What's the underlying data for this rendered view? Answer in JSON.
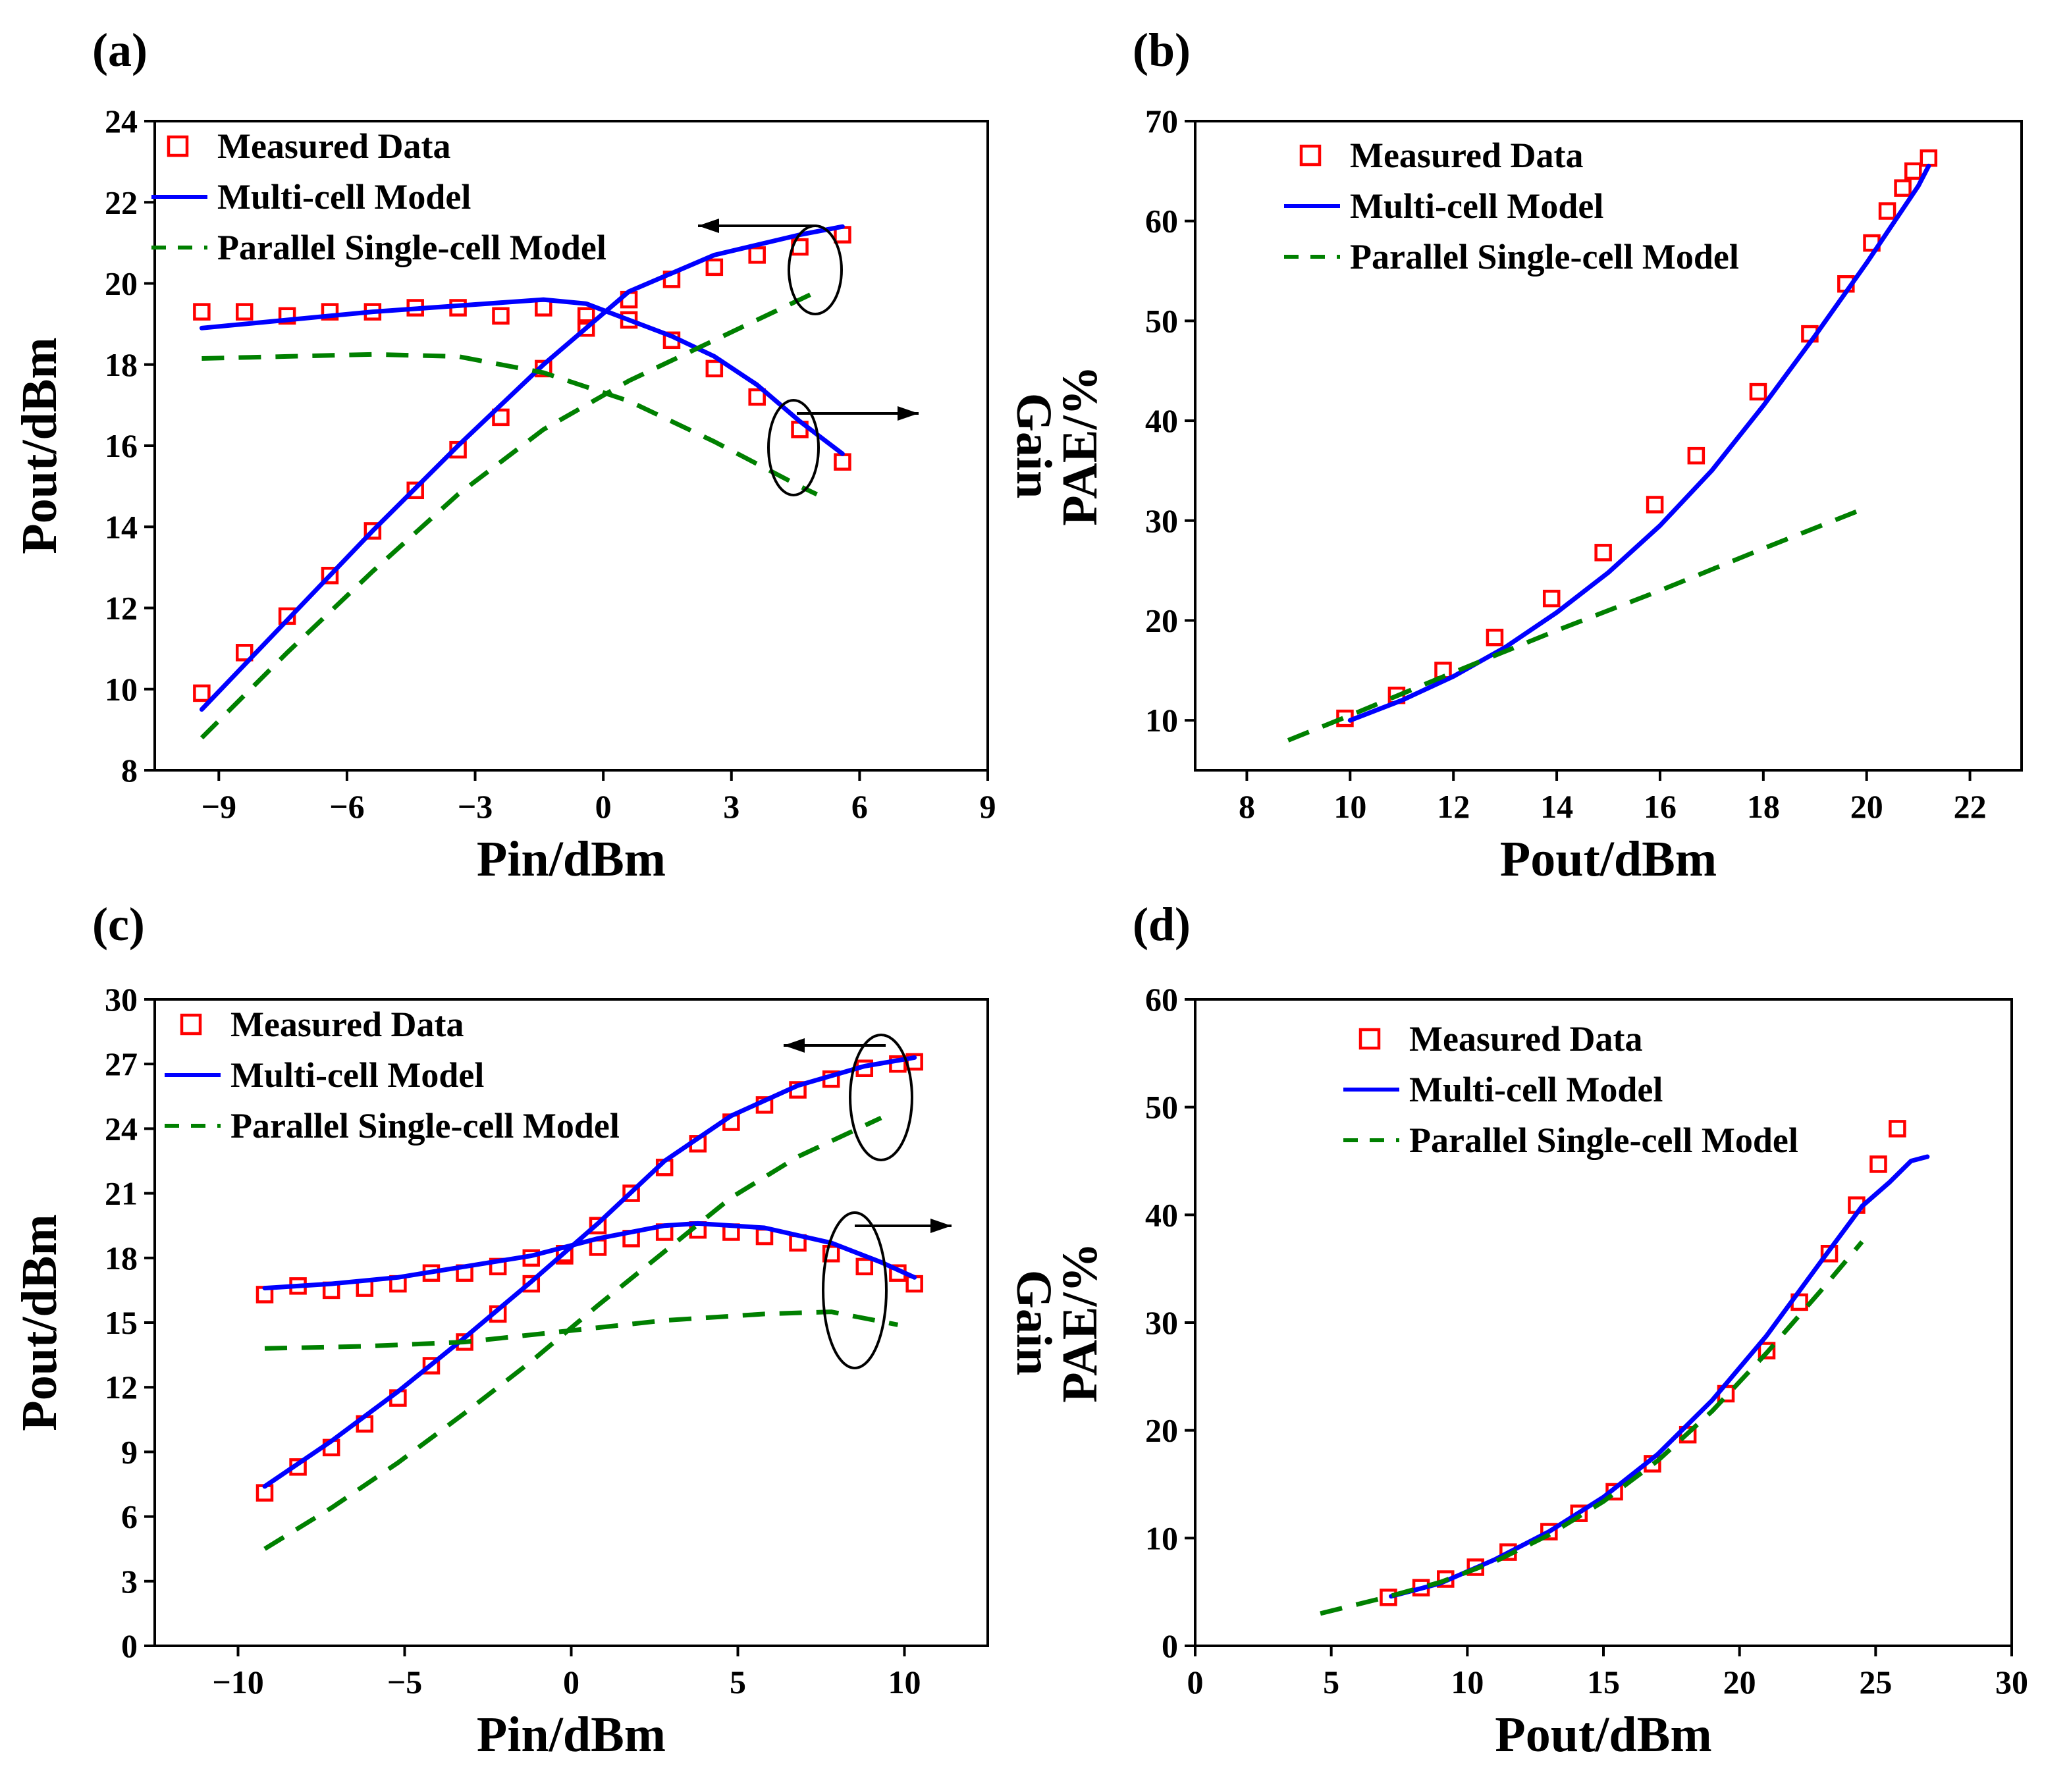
{
  "figure": {
    "panel_letters": [
      "(a)",
      "(b)",
      "(c)",
      "(d)"
    ]
  },
  "legend": {
    "measured": "Measured Data",
    "multi": "Multi-cell Model",
    "parallel": "Parallel Single-cell Model"
  },
  "colors": {
    "measured": "#ff0000",
    "multi": "#0000ff",
    "parallel": "#008000",
    "axis": "#000000"
  },
  "chart_data": [
    {
      "panel": "(a)",
      "type": "line",
      "xlabel": "Pin/dBm",
      "ylabel": "Pout/dBm",
      "ylabel_right": "Gain",
      "xlim": [
        -10.5,
        9
      ],
      "ylim": [
        8,
        24
      ],
      "xticks": [
        -9,
        -6,
        -3,
        0,
        3,
        6,
        9
      ],
      "xtick_labels": [
        "−9",
        "−6",
        "−3",
        "0",
        "3",
        "6",
        "9"
      ],
      "yticks": [
        8,
        10,
        12,
        14,
        16,
        18,
        20,
        22,
        24
      ],
      "ytick_labels": [
        "8",
        "10",
        "12",
        "14",
        "16",
        "18",
        "20",
        "22",
        "24"
      ],
      "series": [
        {
          "name": "Measured Data (Pout)",
          "kind": "markers",
          "color": "measured",
          "x": [
            -9.4,
            -8.4,
            -7.4,
            -6.4,
            -5.4,
            -4.4,
            -3.4,
            -2.4,
            -1.4,
            -0.4,
            0.6,
            1.6,
            2.6,
            3.6,
            4.6,
            5.6
          ],
          "y": [
            9.9,
            10.9,
            11.8,
            12.8,
            13.9,
            14.9,
            15.9,
            16.7,
            17.9,
            18.9,
            19.6,
            20.1,
            20.4,
            20.7,
            20.9,
            21.2
          ]
        },
        {
          "name": "Measured Data (Gain)",
          "kind": "markers",
          "color": "measured",
          "x": [
            -9.4,
            -8.4,
            -7.4,
            -6.4,
            -5.4,
            -4.4,
            -3.4,
            -2.4,
            -1.4,
            -0.4,
            0.6,
            1.6,
            2.6,
            3.6,
            4.6,
            5.6
          ],
          "y": [
            19.3,
            19.3,
            19.2,
            19.3,
            19.3,
            19.4,
            19.4,
            19.2,
            19.4,
            19.2,
            19.1,
            18.6,
            17.9,
            17.2,
            16.4,
            15.6
          ]
        },
        {
          "name": "Multi-cell Model (Pout)",
          "kind": "solid",
          "color": "multi",
          "x": [
            -9.4,
            -7.4,
            -5.4,
            -3.4,
            -1.4,
            0.6,
            2.6,
            4.6,
            5.6
          ],
          "y": [
            9.5,
            11.7,
            13.9,
            16.0,
            18.0,
            19.8,
            20.7,
            21.2,
            21.4
          ]
        },
        {
          "name": "Multi-cell Model (Gain)",
          "kind": "solid",
          "color": "multi",
          "x": [
            -9.4,
            -7.4,
            -5.4,
            -3.4,
            -1.4,
            -0.4,
            0.6,
            1.6,
            2.6,
            3.6,
            4.6,
            5.6
          ],
          "y": [
            18.9,
            19.1,
            19.3,
            19.45,
            19.6,
            19.5,
            19.1,
            18.7,
            18.2,
            17.5,
            16.6,
            15.8
          ]
        },
        {
          "name": "Parallel Single-cell Model (Pout)",
          "kind": "dashed",
          "color": "parallel",
          "x": [
            -9.4,
            -7.4,
            -5.4,
            -3.4,
            -1.4,
            0.6,
            2.6,
            4.6,
            5.0
          ],
          "y": [
            8.8,
            10.9,
            12.9,
            14.8,
            16.4,
            17.6,
            18.6,
            19.6,
            19.8
          ]
        },
        {
          "name": "Parallel Single-cell Model (Gain)",
          "kind": "dashed",
          "color": "parallel",
          "x": [
            -9.4,
            -7.4,
            -5.4,
            -3.4,
            -1.4,
            0.6,
            2.6,
            4.6,
            5.0
          ],
          "y": [
            18.15,
            18.2,
            18.25,
            18.2,
            17.8,
            17.1,
            16.1,
            15.0,
            14.8
          ]
        }
      ],
      "annotations": "ellipses with arrows: upper ellipse arrow points left (Pout axis), lower ellipse arrow points right (Gain axis)"
    },
    {
      "panel": "(b)",
      "type": "line",
      "xlabel": "Pout/dBm",
      "ylabel": "PAE/%",
      "xlim": [
        7,
        23
      ],
      "ylim": [
        5,
        70
      ],
      "xticks": [
        8,
        10,
        12,
        14,
        16,
        18,
        20,
        22
      ],
      "xtick_labels": [
        "8",
        "10",
        "12",
        "14",
        "16",
        "18",
        "20",
        "22"
      ],
      "yticks": [
        10,
        20,
        30,
        40,
        50,
        60,
        70
      ],
      "ytick_labels": [
        "10",
        "20",
        "30",
        "40",
        "50",
        "60",
        "70"
      ],
      "series": [
        {
          "name": "Measured Data",
          "kind": "markers",
          "color": "measured",
          "x": [
            9.9,
            10.9,
            11.8,
            12.8,
            13.9,
            14.9,
            15.9,
            16.7,
            17.9,
            18.9,
            19.6,
            20.1,
            20.4,
            20.7,
            20.9,
            21.2
          ],
          "y": [
            10.2,
            12.5,
            15.0,
            18.3,
            22.2,
            26.8,
            31.6,
            36.5,
            42.9,
            48.7,
            53.7,
            57.8,
            61.0,
            63.3,
            65.0,
            66.3
          ]
        },
        {
          "name": "Multi-cell Model",
          "kind": "solid",
          "color": "multi",
          "x": [
            10,
            11,
            12,
            13,
            14,
            15,
            16,
            17,
            18,
            19,
            20,
            21,
            21.2
          ],
          "y": [
            10.0,
            12.0,
            14.4,
            17.3,
            20.8,
            24.8,
            29.5,
            35.0,
            41.5,
            48.5,
            55.8,
            63.5,
            65.5
          ]
        },
        {
          "name": "Parallel Single-cell Model",
          "kind": "dashed",
          "color": "parallel",
          "x": [
            8.8,
            10,
            12,
            14,
            16,
            18,
            20
          ],
          "y": [
            8.0,
            10.5,
            14.8,
            19.0,
            23.0,
            27.2,
            31.3
          ]
        }
      ]
    },
    {
      "panel": "(c)",
      "type": "line",
      "xlabel": "Pin/dBm",
      "ylabel": "Pout/dBm",
      "ylabel_right": "Gain",
      "xlim": [
        -12.5,
        12.5
      ],
      "ylim": [
        0,
        30
      ],
      "xticks": [
        -10,
        -5,
        0,
        5,
        10
      ],
      "xtick_labels": [
        "−10",
        "−5",
        "0",
        "5",
        "10"
      ],
      "yticks": [
        0,
        3,
        6,
        9,
        12,
        15,
        18,
        21,
        24,
        27,
        30
      ],
      "ytick_labels": [
        "0",
        "3",
        "6",
        "9",
        "12",
        "15",
        "18",
        "21",
        "24",
        "27",
        "30"
      ],
      "series": [
        {
          "name": "Measured Data (Pout)",
          "kind": "markers",
          "color": "measured",
          "x": [
            -9.2,
            -8.2,
            -7.2,
            -6.2,
            -5.2,
            -4.2,
            -3.2,
            -2.2,
            -1.2,
            -0.2,
            0.8,
            1.8,
            2.8,
            3.8,
            4.8,
            5.8,
            6.8,
            7.8,
            8.8,
            9.8,
            10.3
          ],
          "y": [
            7.1,
            8.3,
            9.2,
            10.3,
            11.5,
            13.0,
            14.1,
            15.4,
            16.8,
            18.1,
            19.5,
            21.0,
            22.2,
            23.3,
            24.3,
            25.1,
            25.8,
            26.3,
            26.8,
            27.0,
            27.1
          ]
        },
        {
          "name": "Measured Data (Gain)",
          "kind": "markers",
          "color": "measured",
          "x": [
            -9.2,
            -8.2,
            -7.2,
            -6.2,
            -5.2,
            -4.2,
            -3.2,
            -2.2,
            -1.2,
            -0.2,
            0.8,
            1.8,
            2.8,
            3.8,
            4.8,
            5.8,
            6.8,
            7.8,
            8.8,
            9.8,
            10.3
          ],
          "y": [
            16.3,
            16.7,
            16.5,
            16.6,
            16.8,
            17.3,
            17.3,
            17.6,
            18.0,
            18.2,
            18.5,
            18.9,
            19.2,
            19.3,
            19.2,
            19.0,
            18.7,
            18.2,
            17.6,
            17.3,
            16.8
          ]
        },
        {
          "name": "Multi-cell Model (Pout)",
          "kind": "solid",
          "color": "multi",
          "x": [
            -9.2,
            -7.2,
            -5.2,
            -3.2,
            -1.2,
            0.8,
            2.8,
            4.8,
            6.8,
            8.8,
            10.3
          ],
          "y": [
            7.4,
            9.5,
            11.8,
            14.3,
            16.9,
            19.6,
            22.5,
            24.6,
            26.0,
            26.9,
            27.3
          ]
        },
        {
          "name": "Multi-cell Model (Gain)",
          "kind": "solid",
          "color": "multi",
          "x": [
            -9.2,
            -7.2,
            -5.2,
            -3.2,
            -1.2,
            0.8,
            2.8,
            3.8,
            5.8,
            7.8,
            9.3,
            10.3
          ],
          "y": [
            16.6,
            16.8,
            17.1,
            17.6,
            18.1,
            18.9,
            19.5,
            19.6,
            19.4,
            18.7,
            17.8,
            17.1
          ]
        },
        {
          "name": "Parallel Single-cell Model (Pout)",
          "kind": "dashed",
          "color": "parallel",
          "x": [
            -9.2,
            -7.2,
            -5.2,
            -3.2,
            -1.2,
            0.8,
            2.8,
            4.8,
            6.8,
            9.3
          ],
          "y": [
            4.5,
            6.4,
            8.5,
            10.8,
            13.2,
            15.8,
            18.3,
            20.8,
            22.7,
            24.5
          ]
        },
        {
          "name": "Parallel Single-cell Model (Gain)",
          "kind": "dashed",
          "color": "parallel",
          "x": [
            -9.2,
            -6.2,
            -3.2,
            -0.2,
            2.8,
            5.8,
            7.8,
            9.8
          ],
          "y": [
            13.8,
            13.9,
            14.1,
            14.6,
            15.1,
            15.4,
            15.5,
            14.9
          ]
        }
      ],
      "annotations": "ellipses with arrows: upper ellipse arrow points left (Pout axis), lower ellipse arrow points right (Gain axis)"
    },
    {
      "panel": "(d)",
      "type": "line",
      "xlabel": "Pout/dBm",
      "ylabel": "PAE/%",
      "xlim": [
        0,
        30
      ],
      "ylim": [
        0,
        60
      ],
      "xticks": [
        0,
        5,
        10,
        15,
        20,
        25,
        30
      ],
      "xtick_labels": [
        "0",
        "5",
        "10",
        "15",
        "20",
        "25",
        "30"
      ],
      "yticks": [
        0,
        10,
        20,
        30,
        40,
        50,
        60
      ],
      "ytick_labels": [
        "0",
        "10",
        "20",
        "30",
        "40",
        "50",
        "60"
      ],
      "series": [
        {
          "name": "Measured Data",
          "kind": "markers",
          "color": "measured",
          "x": [
            7.1,
            8.3,
            9.2,
            10.3,
            11.5,
            13.0,
            14.1,
            15.4,
            16.8,
            18.1,
            19.5,
            21.0,
            22.2,
            23.3,
            24.3,
            25.1,
            25.8
          ],
          "y": [
            4.5,
            5.4,
            6.2,
            7.3,
            8.7,
            10.6,
            12.3,
            14.3,
            16.9,
            19.6,
            23.4,
            27.4,
            31.9,
            36.4,
            40.9,
            44.7,
            48.0
          ]
        },
        {
          "name": "Multi-cell Model",
          "kind": "solid",
          "color": "multi",
          "x": [
            7.2,
            9,
            11,
            13,
            15,
            17,
            19,
            21,
            23,
            24.5,
            25.5,
            26.3,
            26.9
          ],
          "y": [
            4.6,
            5.8,
            8.0,
            10.6,
            13.8,
            17.8,
            22.8,
            28.8,
            35.7,
            40.8,
            43.0,
            45.0,
            45.4
          ]
        },
        {
          "name": "Parallel Single-cell Model",
          "kind": "dashed",
          "color": "parallel",
          "x": [
            4.6,
            7,
            9,
            11,
            13,
            15,
            17,
            19,
            21,
            23,
            24.5
          ],
          "y": [
            3.0,
            4.5,
            5.9,
            7.8,
            10.3,
            13.4,
            17.2,
            21.8,
            27.2,
            33.0,
            37.5
          ]
        }
      ]
    }
  ]
}
